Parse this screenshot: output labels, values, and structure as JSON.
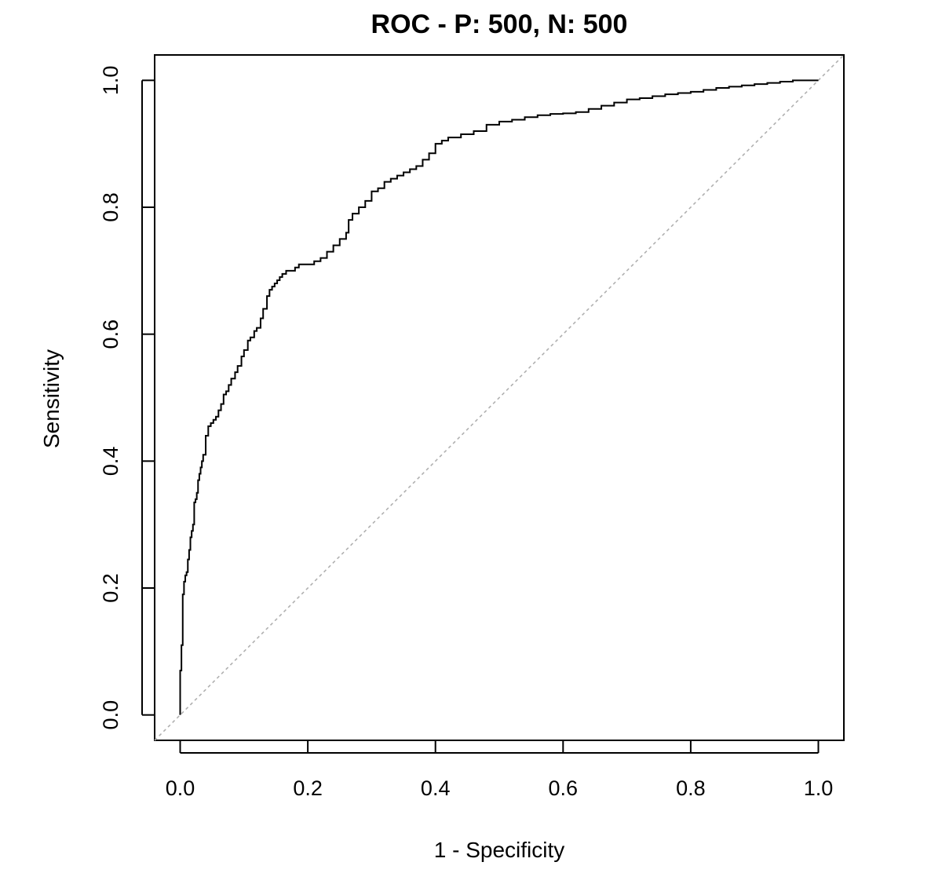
{
  "chart_data": {
    "type": "line",
    "title": "ROC - P: 500, N: 500",
    "xlabel": "1 - Specificity",
    "ylabel": "Sensitivity",
    "xlim": [
      -0.04,
      1.04
    ],
    "ylim": [
      -0.04,
      1.04
    ],
    "x_ticks": [
      "0.0",
      "0.2",
      "0.4",
      "0.6",
      "0.8",
      "1.0"
    ],
    "y_ticks": [
      "0.0",
      "0.2",
      "0.4",
      "0.6",
      "0.8",
      "1.0"
    ],
    "grid": false,
    "legend": "none",
    "colors": {
      "roc_line": "#000000",
      "reference_line": "#b0b0b0",
      "frame": "#000000"
    },
    "series": [
      {
        "kind": "roc-curve",
        "step": true,
        "x": [
          0.0,
          0.0,
          0.002,
          0.004,
          0.006,
          0.008,
          0.01,
          0.012,
          0.014,
          0.016,
          0.018,
          0.02,
          0.022,
          0.024,
          0.026,
          0.028,
          0.03,
          0.032,
          0.034,
          0.036,
          0.04,
          0.044,
          0.048,
          0.052,
          0.056,
          0.06,
          0.064,
          0.068,
          0.072,
          0.076,
          0.08,
          0.086,
          0.09,
          0.096,
          0.1,
          0.106,
          0.11,
          0.116,
          0.12,
          0.126,
          0.13,
          0.136,
          0.14,
          0.144,
          0.148,
          0.152,
          0.156,
          0.16,
          0.166,
          0.17,
          0.176,
          0.18,
          0.186,
          0.19,
          0.2,
          0.21,
          0.22,
          0.23,
          0.24,
          0.25,
          0.26,
          0.264,
          0.27,
          0.28,
          0.29,
          0.3,
          0.31,
          0.32,
          0.33,
          0.34,
          0.35,
          0.36,
          0.37,
          0.38,
          0.39,
          0.4,
          0.41,
          0.42,
          0.44,
          0.46,
          0.48,
          0.5,
          0.52,
          0.54,
          0.56,
          0.58,
          0.6,
          0.62,
          0.64,
          0.66,
          0.68,
          0.7,
          0.72,
          0.74,
          0.76,
          0.78,
          0.8,
          0.82,
          0.84,
          0.86,
          0.88,
          0.9,
          0.92,
          0.94,
          0.96,
          0.98,
          1.0
        ],
        "y": [
          0.0,
          0.07,
          0.11,
          0.19,
          0.21,
          0.22,
          0.225,
          0.245,
          0.26,
          0.28,
          0.29,
          0.3,
          0.335,
          0.34,
          0.35,
          0.37,
          0.38,
          0.39,
          0.4,
          0.41,
          0.44,
          0.455,
          0.46,
          0.465,
          0.47,
          0.48,
          0.49,
          0.505,
          0.51,
          0.52,
          0.53,
          0.54,
          0.55,
          0.565,
          0.575,
          0.59,
          0.595,
          0.605,
          0.61,
          0.625,
          0.64,
          0.66,
          0.67,
          0.675,
          0.68,
          0.685,
          0.69,
          0.695,
          0.7,
          0.7,
          0.7,
          0.705,
          0.71,
          0.71,
          0.71,
          0.715,
          0.72,
          0.73,
          0.74,
          0.75,
          0.76,
          0.78,
          0.79,
          0.8,
          0.81,
          0.825,
          0.83,
          0.84,
          0.845,
          0.85,
          0.855,
          0.86,
          0.865,
          0.875,
          0.885,
          0.9,
          0.905,
          0.91,
          0.915,
          0.92,
          0.93,
          0.935,
          0.938,
          0.942,
          0.945,
          0.947,
          0.948,
          0.95,
          0.955,
          0.96,
          0.965,
          0.97,
          0.972,
          0.975,
          0.978,
          0.98,
          0.982,
          0.985,
          0.988,
          0.99,
          0.992,
          0.994,
          0.996,
          0.998,
          1.0,
          1.0,
          1.0
        ]
      },
      {
        "kind": "reference-diagonal",
        "x": [
          -0.04,
          1.04
        ],
        "y": [
          -0.04,
          1.04
        ]
      }
    ]
  }
}
